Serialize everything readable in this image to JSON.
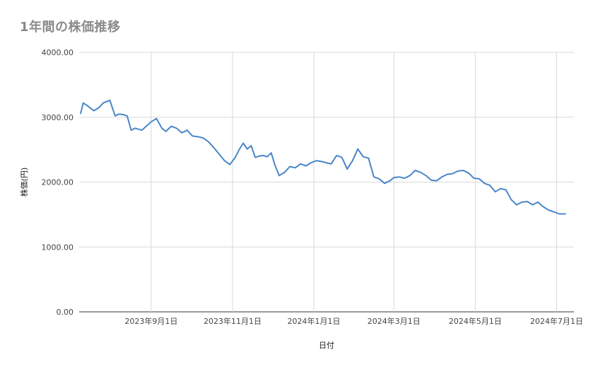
{
  "chart_data": {
    "type": "line",
    "title": "1年間の株価推移",
    "xlabel": "日付",
    "ylabel": "株価(円)",
    "ylim": [
      0,
      4000
    ],
    "yticks": [
      "0.00",
      "1000.00",
      "2000.00",
      "3000.00",
      "4000.00"
    ],
    "xticks": [
      "2023年9月1日",
      "2023年11月1日",
      "2024年1月1日",
      "2024年3月1日",
      "2024年5月1日",
      "2024年7月1日"
    ],
    "grid": true,
    "legend": "none",
    "line_color": "#4a86c8",
    "series": [
      {
        "x": [
          "2023-07-10",
          "2023-07-12",
          "2023-07-15",
          "2023-07-20",
          "2023-07-24",
          "2023-07-27",
          "2023-08-01",
          "2023-08-05",
          "2023-08-08",
          "2023-08-11",
          "2023-08-14",
          "2023-08-17",
          "2023-08-20",
          "2023-08-25",
          "2023-09-01",
          "2023-09-05",
          "2023-09-09",
          "2023-09-12",
          "2023-09-16",
          "2023-09-20",
          "2023-09-24",
          "2023-09-28",
          "2023-10-02",
          "2023-10-06",
          "2023-10-10",
          "2023-10-14",
          "2023-10-18",
          "2023-10-22",
          "2023-10-26",
          "2023-10-30",
          "2023-11-03",
          "2023-11-06",
          "2023-11-09",
          "2023-11-12",
          "2023-11-15",
          "2023-11-18",
          "2023-11-21",
          "2023-11-24",
          "2023-11-27",
          "2023-11-30",
          "2023-12-03",
          "2023-12-06",
          "2023-12-10",
          "2023-12-14",
          "2023-12-18",
          "2023-12-22",
          "2023-12-26",
          "2023-12-30",
          "2024-01-03",
          "2024-01-06",
          "2024-01-10",
          "2024-01-14",
          "2024-01-18",
          "2024-01-22",
          "2024-01-26",
          "2024-01-30",
          "2024-02-03",
          "2024-02-07",
          "2024-02-11",
          "2024-02-15",
          "2024-02-19",
          "2024-02-23",
          "2024-02-27",
          "2024-03-01",
          "2024-03-05",
          "2024-03-09",
          "2024-03-13",
          "2024-03-17",
          "2024-03-21",
          "2024-03-25",
          "2024-03-29",
          "2024-04-02",
          "2024-04-06",
          "2024-04-10",
          "2024-04-14",
          "2024-04-18",
          "2024-04-22",
          "2024-04-26",
          "2024-04-30",
          "2024-05-04",
          "2024-05-08",
          "2024-05-12",
          "2024-05-16",
          "2024-05-20",
          "2024-05-24",
          "2024-05-28",
          "2024-06-01",
          "2024-06-05",
          "2024-06-09",
          "2024-06-13",
          "2024-06-17",
          "2024-06-21",
          "2024-06-25",
          "2024-06-29",
          "2024-07-03",
          "2024-07-08"
        ],
        "values": [
          3050,
          3220,
          3180,
          3100,
          3150,
          3220,
          3260,
          3020,
          3050,
          3040,
          3020,
          2800,
          2830,
          2800,
          2930,
          2980,
          2830,
          2780,
          2860,
          2830,
          2760,
          2800,
          2710,
          2700,
          2680,
          2620,
          2530,
          2430,
          2330,
          2270,
          2380,
          2500,
          2600,
          2510,
          2560,
          2380,
          2400,
          2410,
          2390,
          2450,
          2250,
          2100,
          2150,
          2240,
          2220,
          2280,
          2250,
          2300,
          2330,
          2320,
          2300,
          2280,
          2410,
          2380,
          2200,
          2330,
          2510,
          2390,
          2370,
          2080,
          2050,
          1980,
          2020,
          2070,
          2080,
          2060,
          2100,
          2180,
          2150,
          2100,
          2030,
          2020,
          2080,
          2120,
          2130,
          2170,
          2180,
          2140,
          2060,
          2050,
          1980,
          1950,
          1850,
          1900,
          1880,
          1730,
          1650,
          1690,
          1700,
          1650,
          1690,
          1620,
          1570,
          1540,
          1510,
          1510
        ]
      }
    ]
  }
}
